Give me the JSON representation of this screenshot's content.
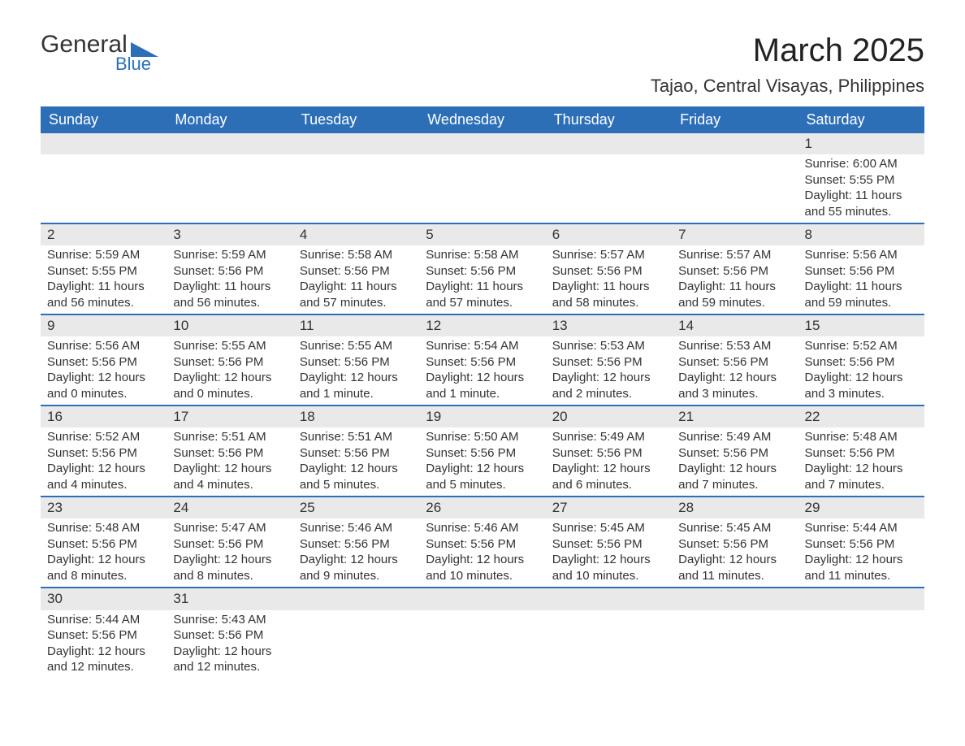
{
  "logo": {
    "word1": "General",
    "word2": "Blue"
  },
  "header": {
    "title": "March 2025",
    "location": "Tajao, Central Visayas, Philippines"
  },
  "colors": {
    "header_bg": "#2c6fb7",
    "header_text": "#ffffff",
    "daynum_bg": "#e9e9e9",
    "row_border": "#2c6fb7",
    "text": "#333333",
    "page_bg": "#ffffff"
  },
  "daysOfWeek": [
    "Sunday",
    "Monday",
    "Tuesday",
    "Wednesday",
    "Thursday",
    "Friday",
    "Saturday"
  ],
  "weeks": [
    {
      "cells": [
        {
          "blank": true
        },
        {
          "blank": true
        },
        {
          "blank": true
        },
        {
          "blank": true
        },
        {
          "blank": true
        },
        {
          "blank": true
        },
        {
          "day": "1",
          "sunrise": "Sunrise: 6:00 AM",
          "sunset": "Sunset: 5:55 PM",
          "dl1": "Daylight: 11 hours",
          "dl2": "and 55 minutes."
        }
      ]
    },
    {
      "cells": [
        {
          "day": "2",
          "sunrise": "Sunrise: 5:59 AM",
          "sunset": "Sunset: 5:55 PM",
          "dl1": "Daylight: 11 hours",
          "dl2": "and 56 minutes."
        },
        {
          "day": "3",
          "sunrise": "Sunrise: 5:59 AM",
          "sunset": "Sunset: 5:56 PM",
          "dl1": "Daylight: 11 hours",
          "dl2": "and 56 minutes."
        },
        {
          "day": "4",
          "sunrise": "Sunrise: 5:58 AM",
          "sunset": "Sunset: 5:56 PM",
          "dl1": "Daylight: 11 hours",
          "dl2": "and 57 minutes."
        },
        {
          "day": "5",
          "sunrise": "Sunrise: 5:58 AM",
          "sunset": "Sunset: 5:56 PM",
          "dl1": "Daylight: 11 hours",
          "dl2": "and 57 minutes."
        },
        {
          "day": "6",
          "sunrise": "Sunrise: 5:57 AM",
          "sunset": "Sunset: 5:56 PM",
          "dl1": "Daylight: 11 hours",
          "dl2": "and 58 minutes."
        },
        {
          "day": "7",
          "sunrise": "Sunrise: 5:57 AM",
          "sunset": "Sunset: 5:56 PM",
          "dl1": "Daylight: 11 hours",
          "dl2": "and 59 minutes."
        },
        {
          "day": "8",
          "sunrise": "Sunrise: 5:56 AM",
          "sunset": "Sunset: 5:56 PM",
          "dl1": "Daylight: 11 hours",
          "dl2": "and 59 minutes."
        }
      ]
    },
    {
      "cells": [
        {
          "day": "9",
          "sunrise": "Sunrise: 5:56 AM",
          "sunset": "Sunset: 5:56 PM",
          "dl1": "Daylight: 12 hours",
          "dl2": "and 0 minutes."
        },
        {
          "day": "10",
          "sunrise": "Sunrise: 5:55 AM",
          "sunset": "Sunset: 5:56 PM",
          "dl1": "Daylight: 12 hours",
          "dl2": "and 0 minutes."
        },
        {
          "day": "11",
          "sunrise": "Sunrise: 5:55 AM",
          "sunset": "Sunset: 5:56 PM",
          "dl1": "Daylight: 12 hours",
          "dl2": "and 1 minute."
        },
        {
          "day": "12",
          "sunrise": "Sunrise: 5:54 AM",
          "sunset": "Sunset: 5:56 PM",
          "dl1": "Daylight: 12 hours",
          "dl2": "and 1 minute."
        },
        {
          "day": "13",
          "sunrise": "Sunrise: 5:53 AM",
          "sunset": "Sunset: 5:56 PM",
          "dl1": "Daylight: 12 hours",
          "dl2": "and 2 minutes."
        },
        {
          "day": "14",
          "sunrise": "Sunrise: 5:53 AM",
          "sunset": "Sunset: 5:56 PM",
          "dl1": "Daylight: 12 hours",
          "dl2": "and 3 minutes."
        },
        {
          "day": "15",
          "sunrise": "Sunrise: 5:52 AM",
          "sunset": "Sunset: 5:56 PM",
          "dl1": "Daylight: 12 hours",
          "dl2": "and 3 minutes."
        }
      ]
    },
    {
      "cells": [
        {
          "day": "16",
          "sunrise": "Sunrise: 5:52 AM",
          "sunset": "Sunset: 5:56 PM",
          "dl1": "Daylight: 12 hours",
          "dl2": "and 4 minutes."
        },
        {
          "day": "17",
          "sunrise": "Sunrise: 5:51 AM",
          "sunset": "Sunset: 5:56 PM",
          "dl1": "Daylight: 12 hours",
          "dl2": "and 4 minutes."
        },
        {
          "day": "18",
          "sunrise": "Sunrise: 5:51 AM",
          "sunset": "Sunset: 5:56 PM",
          "dl1": "Daylight: 12 hours",
          "dl2": "and 5 minutes."
        },
        {
          "day": "19",
          "sunrise": "Sunrise: 5:50 AM",
          "sunset": "Sunset: 5:56 PM",
          "dl1": "Daylight: 12 hours",
          "dl2": "and 5 minutes."
        },
        {
          "day": "20",
          "sunrise": "Sunrise: 5:49 AM",
          "sunset": "Sunset: 5:56 PM",
          "dl1": "Daylight: 12 hours",
          "dl2": "and 6 minutes."
        },
        {
          "day": "21",
          "sunrise": "Sunrise: 5:49 AM",
          "sunset": "Sunset: 5:56 PM",
          "dl1": "Daylight: 12 hours",
          "dl2": "and 7 minutes."
        },
        {
          "day": "22",
          "sunrise": "Sunrise: 5:48 AM",
          "sunset": "Sunset: 5:56 PM",
          "dl1": "Daylight: 12 hours",
          "dl2": "and 7 minutes."
        }
      ]
    },
    {
      "cells": [
        {
          "day": "23",
          "sunrise": "Sunrise: 5:48 AM",
          "sunset": "Sunset: 5:56 PM",
          "dl1": "Daylight: 12 hours",
          "dl2": "and 8 minutes."
        },
        {
          "day": "24",
          "sunrise": "Sunrise: 5:47 AM",
          "sunset": "Sunset: 5:56 PM",
          "dl1": "Daylight: 12 hours",
          "dl2": "and 8 minutes."
        },
        {
          "day": "25",
          "sunrise": "Sunrise: 5:46 AM",
          "sunset": "Sunset: 5:56 PM",
          "dl1": "Daylight: 12 hours",
          "dl2": "and 9 minutes."
        },
        {
          "day": "26",
          "sunrise": "Sunrise: 5:46 AM",
          "sunset": "Sunset: 5:56 PM",
          "dl1": "Daylight: 12 hours",
          "dl2": "and 10 minutes."
        },
        {
          "day": "27",
          "sunrise": "Sunrise: 5:45 AM",
          "sunset": "Sunset: 5:56 PM",
          "dl1": "Daylight: 12 hours",
          "dl2": "and 10 minutes."
        },
        {
          "day": "28",
          "sunrise": "Sunrise: 5:45 AM",
          "sunset": "Sunset: 5:56 PM",
          "dl1": "Daylight: 12 hours",
          "dl2": "and 11 minutes."
        },
        {
          "day": "29",
          "sunrise": "Sunrise: 5:44 AM",
          "sunset": "Sunset: 5:56 PM",
          "dl1": "Daylight: 12 hours",
          "dl2": "and 11 minutes."
        }
      ]
    },
    {
      "cells": [
        {
          "day": "30",
          "sunrise": "Sunrise: 5:44 AM",
          "sunset": "Sunset: 5:56 PM",
          "dl1": "Daylight: 12 hours",
          "dl2": "and 12 minutes."
        },
        {
          "day": "31",
          "sunrise": "Sunrise: 5:43 AM",
          "sunset": "Sunset: 5:56 PM",
          "dl1": "Daylight: 12 hours",
          "dl2": "and 12 minutes."
        },
        {
          "blank": true
        },
        {
          "blank": true
        },
        {
          "blank": true
        },
        {
          "blank": true
        },
        {
          "blank": true
        }
      ]
    }
  ]
}
